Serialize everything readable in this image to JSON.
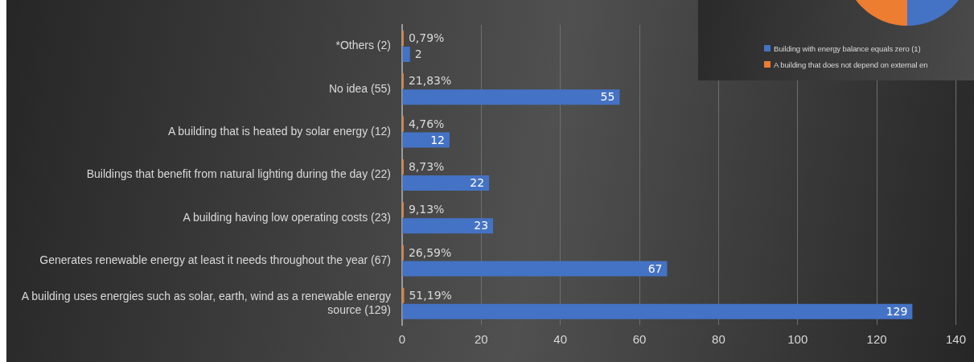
{
  "chart_data": [
    {
      "type": "bar",
      "orientation": "horizontal",
      "categories": [
        "*Others (2)",
        "No idea (55)",
        "A building that is heated by solar energy (12)",
        "Buildings that benefit from natural lighting during the day (22)",
        "A building having low operating costs (23)",
        "Generates renewable energy at least it needs throughout the year (67)",
        "A building uses energies such as solar, earth, wind as a renewable energy source (129)"
      ],
      "series": [
        {
          "color": "#ed7d31",
          "values": [
            0.0079,
            0.2183,
            0.0476,
            0.0873,
            0.0913,
            0.2659,
            0.5119
          ],
          "value_labels": [
            "0,79%",
            "21,83%",
            "4,76%",
            "8,73%",
            "9,13%",
            "26,59%",
            "51,19%"
          ]
        },
        {
          "color": "#4472c4",
          "values": [
            2,
            55,
            12,
            22,
            23,
            67,
            129
          ],
          "value_labels": [
            "2",
            "55",
            "12",
            "22",
            "23",
            "67",
            "129"
          ]
        }
      ],
      "xlim": [
        0,
        140
      ],
      "xticks": [
        0,
        20,
        40,
        60,
        80,
        100,
        120,
        140
      ],
      "grid": "x",
      "legend": false
    },
    {
      "type": "other",
      "annotations": [
        "Building with energy balance equals zero (1)",
        "A building that does not depend on external en"
      ]
    }
  ]
}
